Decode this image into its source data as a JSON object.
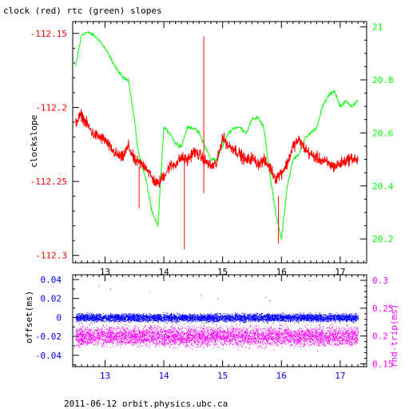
{
  "title": "clock (red) rtc (green) slopes",
  "footer": "2011-06-12 orbit.physics.ubc.ca",
  "colors": {
    "clock": "#ff0000",
    "rtc": "#00ff00",
    "offset": "#0000ff",
    "rndtrip": "#ff00ff",
    "axis": "#000000"
  },
  "chart_data": [
    {
      "type": "line",
      "title": "clock (red) rtc (green) slopes",
      "xlabel": "",
      "ylabel_left": "clockslope",
      "ylabel_right": "",
      "xlim": [
        12.45,
        17.45
      ],
      "ylim_left": [
        -112.305,
        -112.142
      ],
      "ylim_right": [
        20.11,
        21.02
      ],
      "xticks": [
        "13",
        "14",
        "15",
        "16",
        "17"
      ],
      "yticks_left": [
        "-112.15",
        "-112.2",
        "-112.25",
        "-112.3"
      ],
      "yticks_right": [
        "21",
        "20.8",
        "20.6",
        "20.4",
        "20.2"
      ],
      "series": [
        {
          "name": "clock",
          "axis": "left",
          "x": [
            12.5,
            12.6,
            12.7,
            12.8,
            12.9,
            13.0,
            13.1,
            13.2,
            13.3,
            13.4,
            13.5,
            13.6,
            13.7,
            13.8,
            13.9,
            14.0,
            14.1,
            14.2,
            14.3,
            14.4,
            14.5,
            14.6,
            14.7,
            14.8,
            14.9,
            15.0,
            15.1,
            15.2,
            15.3,
            15.4,
            15.5,
            15.6,
            15.7,
            15.8,
            15.9,
            16.0,
            16.1,
            16.2,
            16.3,
            16.4,
            16.5,
            16.6,
            16.7,
            16.8,
            16.9,
            17.0,
            17.1,
            17.2,
            17.3
          ],
          "y": [
            -112.21,
            -112.205,
            -112.212,
            -112.218,
            -112.22,
            -112.222,
            -112.228,
            -112.232,
            -112.234,
            -112.226,
            -112.236,
            -112.238,
            -112.24,
            -112.248,
            -112.252,
            -112.246,
            -112.24,
            -112.238,
            -112.234,
            -112.236,
            -112.23,
            -112.232,
            -112.236,
            -112.24,
            -112.238,
            -112.22,
            -112.226,
            -112.228,
            -112.232,
            -112.236,
            -112.234,
            -112.238,
            -112.236,
            -112.24,
            -112.248,
            -112.244,
            -112.238,
            -112.226,
            -112.222,
            -112.228,
            -112.232,
            -112.234,
            -112.236,
            -112.238,
            -112.24,
            -112.238,
            -112.236,
            -112.234,
            -112.236
          ]
        },
        {
          "name": "rtc",
          "axis": "right",
          "x": [
            12.5,
            12.6,
            12.7,
            12.8,
            12.9,
            13.0,
            13.1,
            13.2,
            13.3,
            13.4,
            13.5,
            13.55,
            13.6,
            13.7,
            13.8,
            13.9,
            14.0,
            14.1,
            14.2,
            14.3,
            14.4,
            14.5,
            14.6,
            14.7,
            14.8,
            14.9,
            15.0,
            15.1,
            15.2,
            15.3,
            15.4,
            15.5,
            15.6,
            15.7,
            15.8,
            15.9,
            16.0,
            16.1,
            16.2,
            16.3,
            16.4,
            16.5,
            16.6,
            16.7,
            16.8,
            16.9,
            17.0,
            17.1,
            17.2,
            17.3
          ],
          "y": [
            20.85,
            20.97,
            20.98,
            20.97,
            20.95,
            20.92,
            20.88,
            20.84,
            20.81,
            20.8,
            20.65,
            20.55,
            20.5,
            20.42,
            20.3,
            20.25,
            20.62,
            20.6,
            20.56,
            20.55,
            20.62,
            20.62,
            20.6,
            20.55,
            20.5,
            20.5,
            20.55,
            20.6,
            20.62,
            20.62,
            20.6,
            20.65,
            20.66,
            20.62,
            20.45,
            20.3,
            20.2,
            20.4,
            20.5,
            20.52,
            20.58,
            20.6,
            20.62,
            20.7,
            20.74,
            20.76,
            20.7,
            20.72,
            20.7,
            20.72
          ]
        }
      ]
    },
    {
      "type": "scatter",
      "title": "",
      "xlabel": "",
      "ylabel_left": "offset(ms)",
      "ylabel_right": "rnd-trip(ms)",
      "xlim": [
        12.45,
        17.45
      ],
      "ylim_left": [
        -0.052,
        0.045
      ],
      "ylim_right": [
        0.145,
        0.31
      ],
      "xticks": [
        "13",
        "14",
        "15",
        "16",
        "17"
      ],
      "yticks_left": [
        "0.04",
        "0.02",
        "0",
        "-0.02",
        "-0.04"
      ],
      "yticks_right": [
        "0.3",
        "0.25",
        "0.2",
        "0.15"
      ],
      "series": [
        {
          "name": "offset",
          "axis": "left",
          "center": 0.0,
          "spread": 0.006,
          "outliers": [
            0.03,
            -0.028,
            0.02,
            0.018,
            -0.035
          ]
        },
        {
          "name": "rnd-trip",
          "axis": "right",
          "center": 0.2,
          "spread": 0.025,
          "outliers": [
            0.29,
            0.28,
            0.275,
            0.27,
            0.3
          ]
        }
      ]
    }
  ]
}
